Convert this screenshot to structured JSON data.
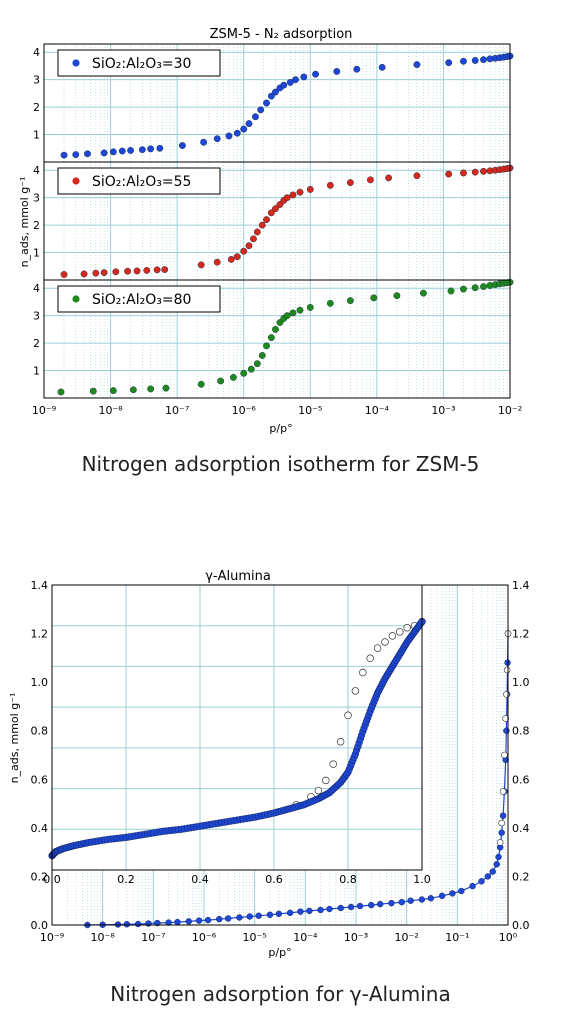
{
  "captions": {
    "zsm5": "Nitrogen adsorption isotherm for ZSM-5",
    "alumina": "Nitrogen adsorption for γ-Alumina"
  },
  "colors": {
    "blue": "#1f47d6",
    "red": "#d42a1e",
    "green": "#1e8a1e",
    "grid": "#9ccfd6"
  },
  "chart_data": [
    {
      "type": "scatter",
      "title": "ZSM-5 - N₂ adsorption",
      "xlabel": "p/p°",
      "ylabel": "n_ads, mmol g⁻¹",
      "xscale": "log",
      "xlim": [
        1e-09,
        0.01
      ],
      "ylim": [
        0,
        4.3
      ],
      "x_ticks": [
        "10⁻⁹",
        "10⁻⁸",
        "10⁻⁷",
        "10⁻⁶",
        "10⁻⁵",
        "10⁻⁴",
        "10⁻³",
        "10⁻²"
      ],
      "y_ticks": [
        "1",
        "2",
        "3",
        "4"
      ],
      "grid": true,
      "panels": [
        {
          "legend": "SiO₂:Al₂O₃=30",
          "color": "#1f47d6",
          "x": [
            2e-09,
            3e-09,
            4.5e-09,
            8e-09,
            1.1e-08,
            1.5e-08,
            2e-08,
            3e-08,
            4e-08,
            5.5e-08,
            1.2e-07,
            2.5e-07,
            4e-07,
            6e-07,
            8e-07,
            1e-06,
            1.2e-06,
            1.5e-06,
            1.8e-06,
            2.2e-06,
            2.6e-06,
            3e-06,
            3.5e-06,
            4e-06,
            5e-06,
            6e-06,
            8e-06,
            1.2e-05,
            2.5e-05,
            5e-05,
            0.00012,
            0.0004,
            0.0012,
            0.002,
            0.003,
            0.004,
            0.005,
            0.006,
            0.007,
            0.008,
            0.009,
            0.01
          ],
          "y": [
            0.25,
            0.27,
            0.3,
            0.33,
            0.37,
            0.4,
            0.42,
            0.45,
            0.48,
            0.5,
            0.6,
            0.72,
            0.85,
            0.95,
            1.05,
            1.2,
            1.4,
            1.65,
            1.9,
            2.15,
            2.4,
            2.55,
            2.7,
            2.8,
            2.9,
            3.0,
            3.1,
            3.2,
            3.3,
            3.38,
            3.45,
            3.55,
            3.62,
            3.67,
            3.7,
            3.73,
            3.76,
            3.78,
            3.8,
            3.82,
            3.84,
            3.86
          ]
        },
        {
          "legend": "SiO₂:Al₂O₃=55",
          "color": "#d42a1e",
          "x": [
            2e-09,
            4e-09,
            6e-09,
            8e-09,
            1.2e-08,
            1.8e-08,
            2.5e-08,
            3.5e-08,
            5e-08,
            6.5e-08,
            2.3e-07,
            4e-07,
            6.5e-07,
            8e-07,
            1e-06,
            1.2e-06,
            1.4e-06,
            1.6e-06,
            1.9e-06,
            2.2e-06,
            2.6e-06,
            3e-06,
            3.5e-06,
            4e-06,
            4.5e-06,
            5.5e-06,
            7e-06,
            1e-05,
            2e-05,
            4e-05,
            8e-05,
            0.00015,
            0.0004,
            0.0012,
            0.002,
            0.003,
            0.004,
            0.005,
            0.006,
            0.007,
            0.008,
            0.009,
            0.01
          ],
          "y": [
            0.2,
            0.22,
            0.25,
            0.27,
            0.3,
            0.32,
            0.33,
            0.35,
            0.37,
            0.38,
            0.55,
            0.65,
            0.75,
            0.85,
            1.05,
            1.25,
            1.5,
            1.75,
            2.0,
            2.2,
            2.45,
            2.6,
            2.75,
            2.9,
            3.0,
            3.1,
            3.2,
            3.3,
            3.45,
            3.55,
            3.65,
            3.72,
            3.8,
            3.86,
            3.9,
            3.93,
            3.96,
            3.98,
            4.0,
            4.02,
            4.04,
            4.06,
            4.08
          ]
        },
        {
          "legend": "SiO₂:Al₂O₃=80",
          "color": "#1e8a1e",
          "x": [
            1.8e-09,
            5.5e-09,
            1.1e-08,
            2.2e-08,
            4e-08,
            6.8e-08,
            2.3e-07,
            4.5e-07,
            7e-07,
            1e-06,
            1.3e-06,
            1.6e-06,
            1.9e-06,
            2.2e-06,
            2.6e-06,
            3e-06,
            3.5e-06,
            4e-06,
            4.5e-06,
            5.5e-06,
            7e-06,
            1e-05,
            2e-05,
            4e-05,
            9e-05,
            0.0002,
            0.0005,
            0.0013,
            0.002,
            0.003,
            0.004,
            0.005,
            0.006,
            0.007,
            0.008,
            0.009,
            0.01
          ],
          "y": [
            0.22,
            0.25,
            0.27,
            0.3,
            0.33,
            0.36,
            0.5,
            0.62,
            0.75,
            0.9,
            1.05,
            1.25,
            1.55,
            1.9,
            2.2,
            2.5,
            2.75,
            2.9,
            3.0,
            3.1,
            3.2,
            3.3,
            3.45,
            3.55,
            3.65,
            3.73,
            3.82,
            3.9,
            3.97,
            4.02,
            4.06,
            4.1,
            4.13,
            4.16,
            4.18,
            4.2,
            4.22
          ]
        }
      ]
    },
    {
      "type": "scatter",
      "title": "γ-Alumina",
      "xlabel": "p/p°",
      "ylabel": "n_ads, mmol g⁻¹",
      "xscale": "log",
      "xlim": [
        1e-09,
        1
      ],
      "ylim": [
        0,
        1.4
      ],
      "x_ticks": [
        "10⁻⁹",
        "10⁻⁸",
        "10⁻⁷",
        "10⁻⁶",
        "10⁻⁵",
        "10⁻⁴",
        "10⁻³",
        "10⁻²",
        "10⁻¹",
        "10⁰"
      ],
      "y_ticks_left": [
        "0.0",
        "0.2",
        "0.4",
        "0.6",
        "0.8",
        "1.0",
        "1.2",
        "1.4"
      ],
      "y_ticks_right": [
        "0.0",
        "0.2",
        "0.4",
        "0.6",
        "0.8",
        "1.0",
        "1.2",
        "1.4"
      ],
      "grid": true,
      "series": [
        {
          "color": "#1f47d6",
          "x": [
            5e-09,
            1e-08,
            2e-08,
            3e-08,
            5e-08,
            8e-08,
            1.2e-07,
            2e-07,
            3e-07,
            5e-07,
            8e-07,
            1.2e-06,
            2e-06,
            3e-06,
            5e-06,
            8e-06,
            1.2e-05,
            2e-05,
            3e-05,
            5e-05,
            8e-05,
            0.00012,
            0.0002,
            0.0003,
            0.0005,
            0.0008,
            0.0012,
            0.002,
            0.003,
            0.005,
            0.008,
            0.012,
            0.02,
            0.03,
            0.05,
            0.08,
            0.12,
            0.2,
            0.3,
            0.4,
            0.5,
            0.6,
            0.65,
            0.7,
            0.75,
            0.8,
            0.85,
            0.9,
            0.93,
            0.96,
            0.98,
            1.0
          ],
          "y": [
            0.0,
            0.001,
            0.002,
            0.003,
            0.004,
            0.006,
            0.008,
            0.01,
            0.012,
            0.015,
            0.018,
            0.02,
            0.024,
            0.027,
            0.031,
            0.035,
            0.038,
            0.042,
            0.046,
            0.05,
            0.055,
            0.058,
            0.062,
            0.066,
            0.07,
            0.074,
            0.078,
            0.082,
            0.086,
            0.09,
            0.094,
            0.1,
            0.105,
            0.11,
            0.12,
            0.13,
            0.14,
            0.16,
            0.18,
            0.2,
            0.22,
            0.25,
            0.28,
            0.32,
            0.38,
            0.45,
            0.55,
            0.68,
            0.8,
            0.95,
            1.08,
            1.2
          ]
        },
        {
          "color": "#ffffff",
          "x": [
            0.7,
            0.75,
            0.8,
            0.85,
            0.9,
            0.93,
            0.96,
            1.0
          ],
          "y": [
            0.34,
            0.42,
            0.55,
            0.7,
            0.85,
            0.95,
            1.05,
            1.2
          ]
        }
      ],
      "inset": {
        "type": "scatter",
        "xlim": [
          0,
          1
        ],
        "ylim": [
          0,
          1.4
        ],
        "x_ticks": [
          "0.0",
          "0.2",
          "0.4",
          "0.6",
          "0.8",
          "1.0"
        ],
        "y_ticks": [
          "0.0",
          "0.2",
          "0.4",
          "0.6",
          "0.8",
          "1.0",
          "1.2",
          "1.4"
        ],
        "adsorption": {
          "color": "#1f47d6",
          "x": [
            0.0,
            0.01,
            0.03,
            0.06,
            0.1,
            0.15,
            0.2,
            0.25,
            0.3,
            0.35,
            0.4,
            0.45,
            0.5,
            0.55,
            0.6,
            0.64,
            0.68,
            0.72,
            0.75,
            0.78,
            0.8,
            0.82,
            0.84,
            0.86,
            0.88,
            0.9,
            0.92,
            0.94,
            0.96,
            0.98,
            1.0
          ],
          "y": [
            0.07,
            0.09,
            0.105,
            0.12,
            0.135,
            0.15,
            0.16,
            0.175,
            0.19,
            0.2,
            0.215,
            0.23,
            0.245,
            0.26,
            0.28,
            0.3,
            0.32,
            0.35,
            0.38,
            0.43,
            0.48,
            0.57,
            0.68,
            0.78,
            0.87,
            0.94,
            1.0,
            1.06,
            1.12,
            1.17,
            1.22
          ]
        },
        "desorption": {
          "color": "#ffffff",
          "x": [
            0.66,
            0.7,
            0.72,
            0.74,
            0.76,
            0.78,
            0.8,
            0.82,
            0.84,
            0.86,
            0.88,
            0.9,
            0.92,
            0.94,
            0.96,
            0.98,
            1.0
          ],
          "y": [
            0.32,
            0.36,
            0.39,
            0.44,
            0.52,
            0.63,
            0.76,
            0.88,
            0.97,
            1.04,
            1.09,
            1.12,
            1.15,
            1.17,
            1.19,
            1.2,
            1.22
          ]
        }
      }
    }
  ]
}
